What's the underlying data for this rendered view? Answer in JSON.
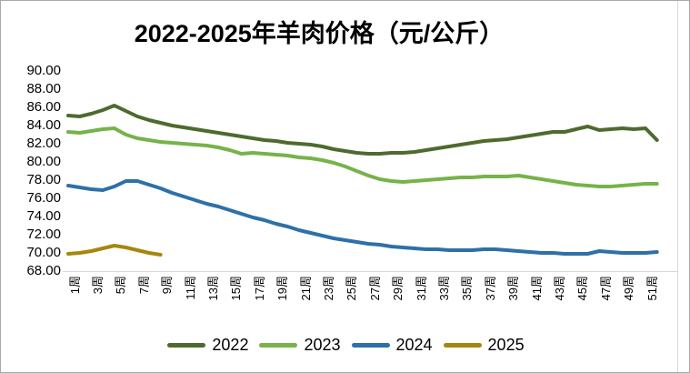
{
  "title": "2022-2025年羊肉价格（元/公斤）",
  "chart_data": {
    "type": "line",
    "title": "2022-2025年羊肉价格（元/公斤）",
    "xlabel": "",
    "ylabel": "",
    "x_unit": "周",
    "x_tick_labels": [
      "1周",
      "3周",
      "5周",
      "7周",
      "9周",
      "11周",
      "13周",
      "15周",
      "17周",
      "19周",
      "21周",
      "23周",
      "25周",
      "27周",
      "29周",
      "31周",
      "33周",
      "35周",
      "37周",
      "39周",
      "41周",
      "43周",
      "45周",
      "47周",
      "49周",
      "51周"
    ],
    "ytick_labels": [
      "90.00",
      "88.00",
      "86.00",
      "84.00",
      "82.00",
      "80.00",
      "78.00",
      "76.00",
      "74.00",
      "72.00",
      "70.00",
      "68.00"
    ],
    "ylim": [
      68,
      90
    ],
    "ytick_step": 2,
    "grid": "none",
    "legend_position": "bottom",
    "axis_line_color": "#d9d9d9",
    "series": [
      {
        "name": "2022",
        "color": "#4d6b2e",
        "values": [
          85.1,
          85.0,
          85.3,
          85.7,
          86.2,
          85.6,
          85.0,
          84.6,
          84.3,
          84.0,
          83.8,
          83.6,
          83.4,
          83.2,
          83.0,
          82.8,
          82.6,
          82.4,
          82.3,
          82.1,
          82.0,
          81.9,
          81.7,
          81.4,
          81.2,
          81.0,
          80.9,
          80.9,
          81.0,
          81.0,
          81.1,
          81.3,
          81.5,
          81.7,
          81.9,
          82.1,
          82.3,
          82.4,
          82.5,
          82.7,
          82.9,
          83.1,
          83.3,
          83.3,
          83.6,
          83.9,
          83.5,
          83.6,
          83.7,
          83.6,
          83.7,
          82.4
        ]
      },
      {
        "name": "2023",
        "color": "#76b34a",
        "values": [
          83.3,
          83.2,
          83.4,
          83.6,
          83.7,
          83.0,
          82.6,
          82.4,
          82.2,
          82.1,
          82.0,
          81.9,
          81.8,
          81.6,
          81.3,
          80.9,
          81.0,
          80.9,
          80.8,
          80.7,
          80.5,
          80.4,
          80.2,
          79.9,
          79.5,
          79.0,
          78.5,
          78.1,
          77.9,
          77.8,
          77.9,
          78.0,
          78.1,
          78.2,
          78.3,
          78.3,
          78.4,
          78.4,
          78.4,
          78.5,
          78.3,
          78.1,
          77.9,
          77.7,
          77.5,
          77.4,
          77.3,
          77.3,
          77.4,
          77.5,
          77.6,
          77.6
        ]
      },
      {
        "name": "2024",
        "color": "#2e70a8",
        "values": [
          77.4,
          77.2,
          77.0,
          76.9,
          77.3,
          77.9,
          77.9,
          77.5,
          77.1,
          76.6,
          76.2,
          75.8,
          75.4,
          75.1,
          74.7,
          74.3,
          73.9,
          73.6,
          73.2,
          72.9,
          72.5,
          72.2,
          71.9,
          71.6,
          71.4,
          71.2,
          71.0,
          70.9,
          70.7,
          70.6,
          70.5,
          70.4,
          70.4,
          70.3,
          70.3,
          70.3,
          70.4,
          70.4,
          70.3,
          70.2,
          70.1,
          70.0,
          70.0,
          69.9,
          69.9,
          69.9,
          70.2,
          70.1,
          70.0,
          70.0,
          70.0,
          70.1
        ]
      },
      {
        "name": "2025",
        "color": "#a5870e",
        "values": [
          69.9,
          70.0,
          70.2,
          70.5,
          70.8,
          70.6,
          70.3,
          70.0,
          69.8
        ]
      }
    ]
  }
}
